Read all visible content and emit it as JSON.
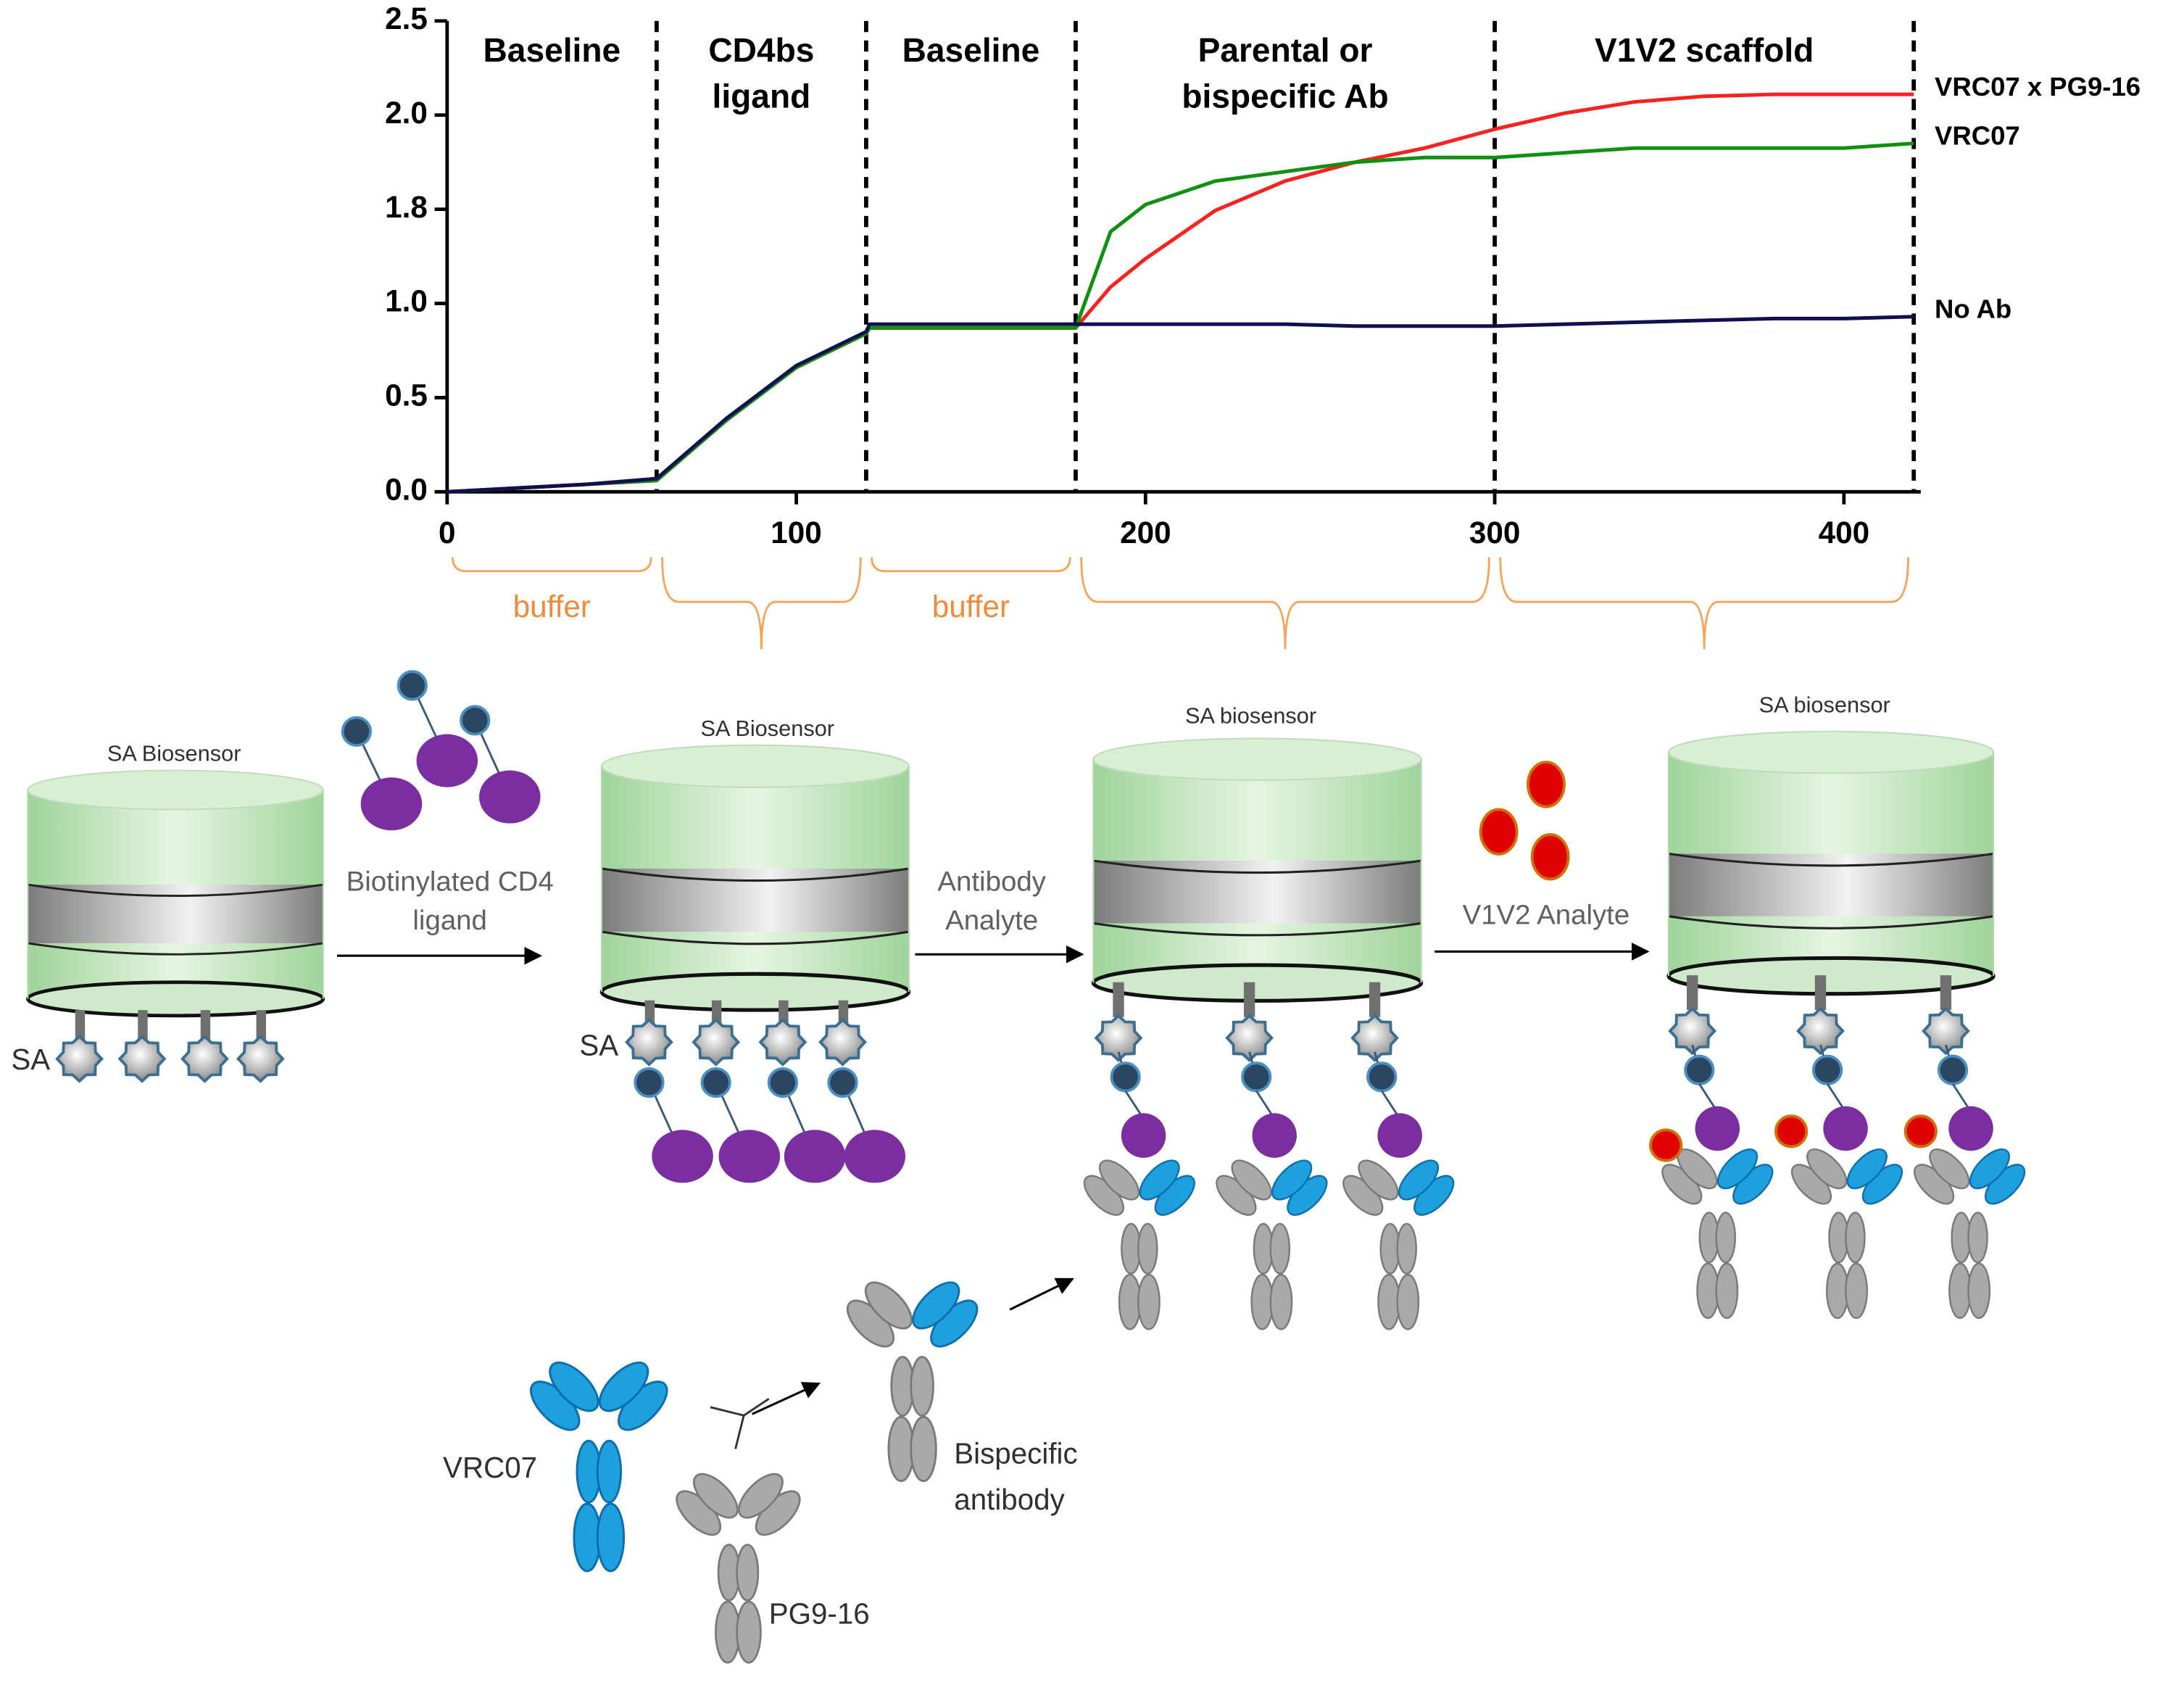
{
  "chart_data": {
    "type": "line",
    "x": [
      0,
      20,
      40,
      60,
      80,
      100,
      120,
      121,
      140,
      160,
      180,
      190,
      200,
      220,
      240,
      260,
      280,
      300,
      320,
      340,
      360,
      380,
      400,
      420
    ],
    "series": [
      {
        "name": "VRC07 x PG9-16",
        "color": "#ff2020",
        "values": [
          0,
          0.02,
          0.04,
          0.06,
          0.38,
          0.66,
          0.84,
          0.87,
          0.87,
          0.87,
          0.87,
          1.14,
          1.38,
          1.79,
          1.86,
          1.9,
          1.93,
          1.97,
          2.01,
          2.07,
          2.1,
          2.11,
          2.11,
          2.11
        ]
      },
      {
        "name": "VRC07",
        "color": "#109010",
        "values": [
          0,
          0.02,
          0.04,
          0.06,
          0.38,
          0.66,
          0.84,
          0.87,
          0.87,
          0.87,
          0.87,
          1.61,
          1.81,
          1.86,
          1.88,
          1.9,
          1.91,
          1.91,
          1.92,
          1.93,
          1.93,
          1.93,
          1.93,
          1.94
        ]
      },
      {
        "name": "No Ab",
        "color": "#101050",
        "values": [
          0,
          0.02,
          0.04,
          0.07,
          0.39,
          0.67,
          0.85,
          0.89,
          0.89,
          0.89,
          0.89,
          0.89,
          0.89,
          0.89,
          0.89,
          0.88,
          0.88,
          0.88,
          0.89,
          0.9,
          0.91,
          0.92,
          0.92,
          0.93
        ]
      }
    ],
    "xlim": [
      0,
      422
    ],
    "xticks": [
      0,
      100,
      200,
      300,
      400
    ],
    "ylim": [
      0,
      2.5
    ],
    "yticks": [
      {
        "value": 0,
        "label": "0.0"
      },
      0.5,
      {
        "value": 1,
        "label": "1.0"
      },
      1.8,
      {
        "value": 2,
        "label": "2.0"
      },
      2.5
    ],
    "phases": [
      {
        "label": [
          "Baseline"
        ],
        "start": 0,
        "end": 60,
        "bracket_label": "buffer"
      },
      {
        "label": [
          "CD4bs",
          "ligand"
        ],
        "start": 60,
        "end": 120
      },
      {
        "label": [
          "Baseline"
        ],
        "start": 120,
        "end": 180,
        "bracket_label": "buffer"
      },
      {
        "label": [
          "Parental or",
          "bispecific Ab"
        ],
        "start": 180,
        "end": 300
      },
      {
        "label": [
          "V1V2 scaffold"
        ],
        "start": 300,
        "end": 420
      }
    ]
  },
  "diagram": {
    "sensors": [
      "SA Biosensor",
      "SA Biosensor",
      "SA biosensor",
      "SA biosensor"
    ],
    "sa_labels": [
      "SA",
      "SA"
    ],
    "steps": [
      [
        "Biotinylated CD4",
        "ligand"
      ],
      [
        "Antibody",
        "Analyte"
      ],
      [
        "V1V2 Analyte"
      ]
    ],
    "antibodies": {
      "parental": "VRC07",
      "partner": "PG9-16",
      "bispecific": [
        "Bispecific",
        "antibody"
      ]
    }
  }
}
